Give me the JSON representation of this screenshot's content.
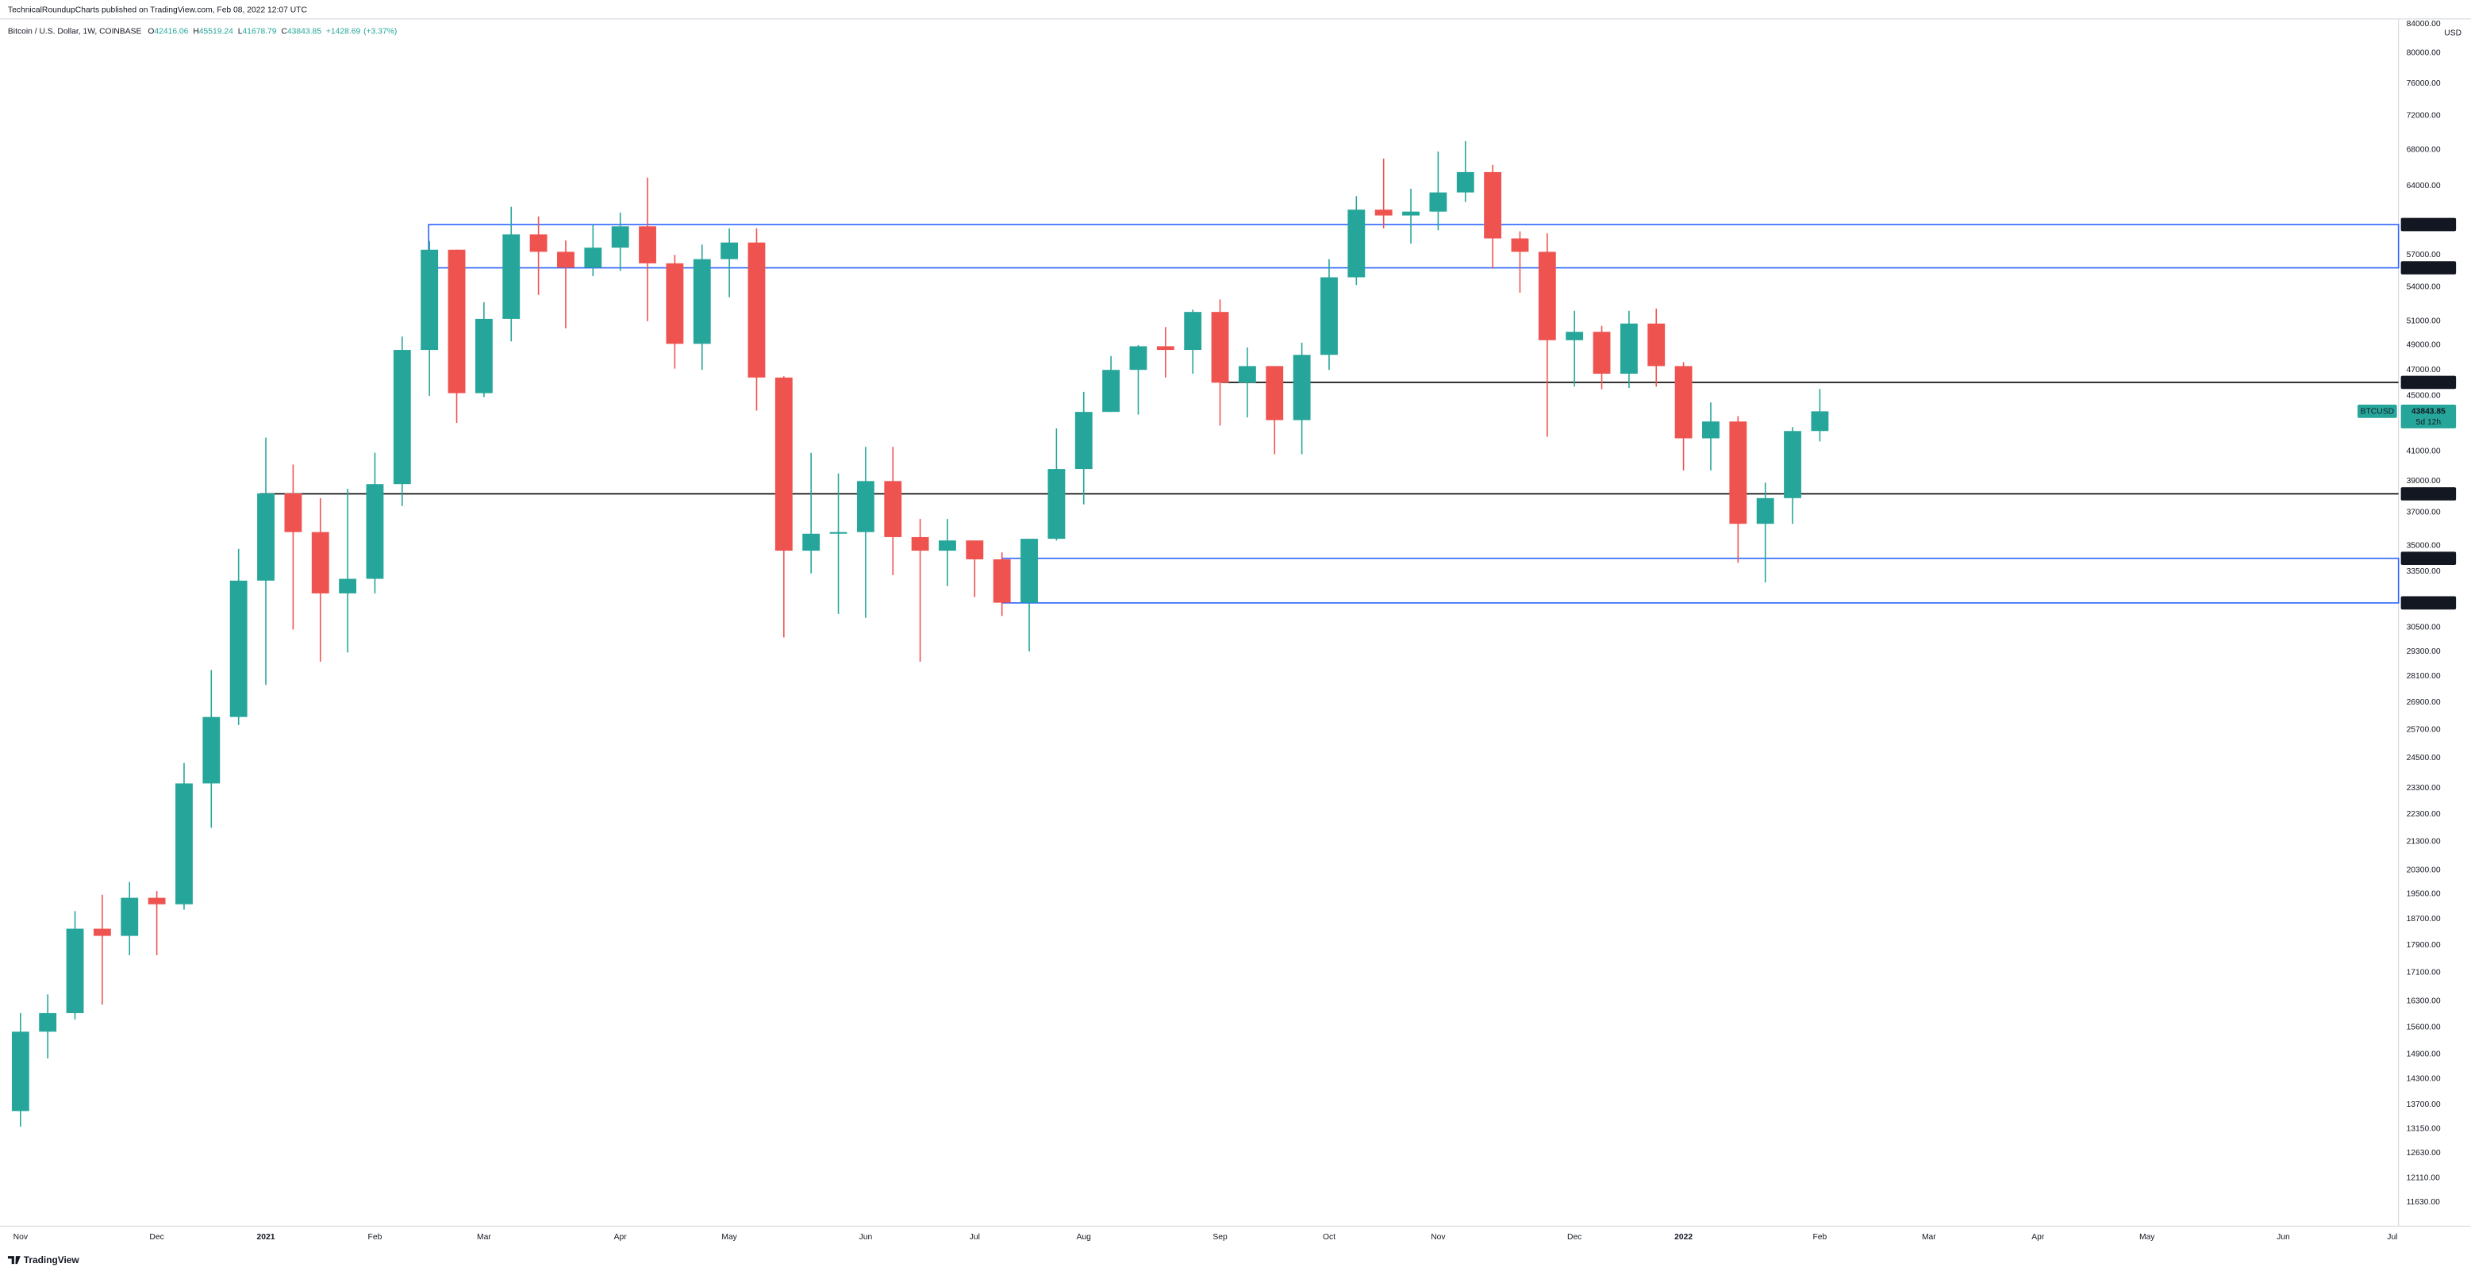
{
  "header": {
    "publisher": "TechnicalRoundupCharts published on TradingView.com, Feb 08, 2022 12:07 UTC",
    "symbol": "Bitcoin / U.S. Dollar, 1W, COINBASE",
    "ohlc_letters": [
      "O",
      "H",
      "L",
      "C"
    ],
    "change": "+1428.69",
    "change_pct": "(+3.37%)"
  },
  "footer": {
    "brand": "TradingView"
  },
  "chart_data": {
    "type": "candlestick",
    "log_scale": true,
    "grid": false,
    "currency": "USD",
    "ticker": "BTCUSD",
    "countdown": "5d 12h",
    "up_color": "#26a69a",
    "down_color": "#ef5350",
    "categories": [
      "Nov",
      null,
      null,
      null,
      null,
      "Dec",
      null,
      null,
      null,
      "2021",
      null,
      null,
      null,
      "Feb",
      null,
      null,
      null,
      "Mar",
      null,
      null,
      null,
      null,
      "Apr",
      null,
      null,
      null,
      "May",
      null,
      null,
      null,
      null,
      "Jun",
      null,
      null,
      null,
      "Jul",
      null,
      null,
      null,
      "Aug",
      null,
      null,
      null,
      null,
      "Sep",
      null,
      null,
      null,
      "Oct",
      null,
      null,
      null,
      "Nov",
      null,
      null,
      null,
      null,
      "Dec",
      null,
      null,
      null,
      "2022",
      null,
      null,
      null,
      null,
      "Feb",
      null,
      null,
      null,
      "Mar",
      null,
      null,
      null,
      "Apr",
      null,
      null,
      null,
      "May",
      null,
      null,
      null,
      null,
      "Jun",
      null,
      null,
      null,
      "Jul"
    ],
    "open": [
      13550,
      15480,
      15970,
      18400,
      18180,
      19380,
      19170,
      23480,
      26250,
      33000,
      38200,
      35800,
      32300,
      33100,
      38800,
      48600,
      57500,
      45200,
      51200,
      59000,
      57300,
      55800,
      57700,
      59800,
      56200,
      49100,
      56600,
      58200,
      46400,
      34700,
      35700,
      35800,
      39000,
      35500,
      34700,
      35300,
      34200,
      31800,
      35400,
      39800,
      43800,
      47000,
      48900,
      48600,
      51800,
      46000,
      47300,
      43200,
      48200,
      54900,
      61500,
      60900,
      61300,
      63300,
      65500,
      58600,
      57300,
      49400,
      50100,
      46700,
      50800,
      47300,
      41900,
      43100,
      36300,
      37900,
      42416.06,
      null,
      null,
      null,
      null,
      null,
      null,
      null,
      null,
      null,
      null,
      null,
      null,
      null,
      null,
      null,
      null,
      null,
      null,
      null,
      null,
      null
    ],
    "high": [
      15970,
      16480,
      18950,
      19480,
      19900,
      19600,
      24300,
      28400,
      34800,
      41950,
      40100,
      37900,
      38500,
      40900,
      49700,
      58350,
      57500,
      52650,
      61800,
      60800,
      58400,
      60000,
      61200,
      64900,
      57000,
      58000,
      59600,
      59600,
      46500,
      40900,
      39500,
      41300,
      41300,
      36600,
      36600,
      35300,
      34600,
      35400,
      42600,
      45300,
      48100,
      49000,
      50500,
      52000,
      52900,
      48800,
      47300,
      49200,
      56600,
      62900,
      67000,
      63700,
      67800,
      69000,
      66300,
      59300,
      59100,
      51900,
      50600,
      51900,
      52100,
      47600,
      44500,
      43500,
      38900,
      42700,
      45519.24,
      null,
      null,
      null,
      null,
      null,
      null,
      null,
      null,
      null,
      null,
      null,
      null,
      null,
      null,
      null,
      null,
      null,
      null,
      null,
      null,
      null
    ],
    "low": [
      13200,
      14800,
      15800,
      16200,
      17600,
      17600,
      19000,
      21800,
      25900,
      27700,
      30400,
      28800,
      29250,
      32300,
      37400,
      45000,
      43000,
      44900,
      49300,
      53300,
      50400,
      55000,
      55500,
      51000,
      47100,
      47000,
      53100,
      43900,
      30000,
      33400,
      31200,
      31000,
      33300,
      28800,
      32700,
      32100,
      31100,
      29300,
      35300,
      37500,
      43800,
      43600,
      46400,
      46700,
      42800,
      43400,
      40800,
      40800,
      47000,
      54200,
      59600,
      58100,
      59400,
      62300,
      55700,
      53500,
      42000,
      45700,
      45500,
      45600,
      45700,
      39700,
      39700,
      34000,
      32900,
      36300,
      41678.79,
      null,
      null,
      null,
      null,
      null,
      null,
      null,
      null,
      null,
      null,
      null,
      null,
      null,
      null,
      null,
      null,
      null,
      null,
      null,
      null,
      null
    ],
    "close": [
      15480,
      15970,
      18400,
      18180,
      19380,
      19170,
      23480,
      26250,
      33000,
      38200,
      35800,
      32300,
      33100,
      38800,
      48600,
      57500,
      45200,
      51200,
      59000,
      57300,
      55800,
      57700,
      59800,
      56200,
      49100,
      56600,
      58200,
      46400,
      34700,
      35700,
      35800,
      39000,
      35500,
      34700,
      35300,
      34200,
      31800,
      35400,
      39800,
      43800,
      47000,
      48900,
      48600,
      51800,
      46000,
      47300,
      43200,
      48200,
      54900,
      61500,
      60900,
      61300,
      63300,
      65500,
      58600,
      57300,
      49400,
      50100,
      46700,
      50800,
      47300,
      41900,
      43100,
      36300,
      37900,
      42416.06,
      43843.85,
      null,
      null,
      null,
      null,
      null,
      null,
      null,
      null,
      null,
      null,
      null,
      null,
      null,
      null,
      null,
      null,
      null,
      null,
      null,
      null,
      null
    ],
    "zones": [
      {
        "top": 59983.66,
        "bottom": 55778.82,
        "color": "#2962ff"
      },
      {
        "top": 34259.22,
        "bottom": 31788.25,
        "color": "#2962ff"
      }
    ],
    "levels": [
      {
        "value": 46024.23,
        "color": "#000000"
      },
      {
        "value": 38171.57,
        "color": "#000000"
      }
    ],
    "ylim": [
      11170,
      84700
    ],
    "yticks": [
      {
        "value": 84000,
        "label": "84000.00"
      },
      {
        "value": 80000,
        "label": "80000.00"
      },
      {
        "value": 76000,
        "label": "76000.00"
      },
      {
        "value": 72000,
        "label": "72000.00"
      },
      {
        "value": 68000,
        "label": "68000.00"
      },
      {
        "value": 64000,
        "label": "64000.00"
      },
      {
        "value": 57000,
        "label": "57000.00"
      },
      {
        "value": 54000,
        "label": "54000.00"
      },
      {
        "value": 51000,
        "label": "51000.00"
      },
      {
        "value": 49000,
        "label": "49000.00"
      },
      {
        "value": 47000,
        "label": "47000.00"
      },
      {
        "value": 45000,
        "label": "45000.00"
      },
      {
        "value": 41000,
        "label": "41000.00"
      },
      {
        "value": 39000,
        "label": "39000.00"
      },
      {
        "value": 37000,
        "label": "37000.00"
      },
      {
        "value": 35000,
        "label": "35000.00"
      },
      {
        "value": 33500,
        "label": "33500.00"
      },
      {
        "value": 30500,
        "label": "30500.00"
      },
      {
        "value": 29300,
        "label": "29300.00"
      },
      {
        "value": 28100,
        "label": "28100.00"
      },
      {
        "value": 26900,
        "label": "26900.00"
      },
      {
        "value": 25700,
        "label": "25700.00"
      },
      {
        "value": 24500,
        "label": "24500.00"
      },
      {
        "value": 23300,
        "label": "23300.00"
      },
      {
        "value": 22300,
        "label": "22300.00"
      },
      {
        "value": 21300,
        "label": "21300.00"
      },
      {
        "value": 20300,
        "label": "20300.00"
      },
      {
        "value": 19500,
        "label": "19500.00"
      },
      {
        "value": 18700,
        "label": "18700.00"
      },
      {
        "value": 17900,
        "label": "17900.00"
      },
      {
        "value": 17100,
        "label": "17100.00"
      },
      {
        "value": 16300,
        "label": "16300.00"
      },
      {
        "value": 15600,
        "label": "15600.00"
      },
      {
        "value": 14900,
        "label": "14900.00"
      },
      {
        "value": 14300,
        "label": "14300.00"
      },
      {
        "value": 13700,
        "label": "13700.00"
      },
      {
        "value": 13150,
        "label": "13150.00"
      },
      {
        "value": 12630,
        "label": "12630.00"
      },
      {
        "value": 12110,
        "label": "12110.00"
      },
      {
        "value": 11630,
        "label": "11630.00"
      }
    ]
  }
}
